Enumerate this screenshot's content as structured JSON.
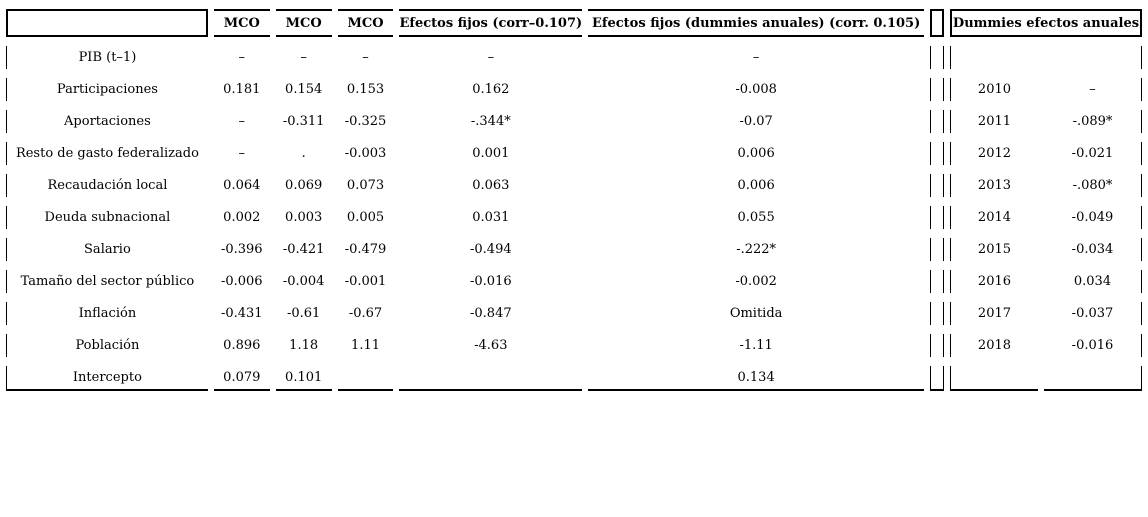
{
  "table": {
    "header": {
      "label": "",
      "mco1": "MCO",
      "mco2": "MCO",
      "mco3": "MCO",
      "ef": "Efectos fijos (corr–0.107)",
      "efd": "Efectos fijos (dummies anuales) (corr. 0.105)",
      "dummies_panel": "Dummies efectos anuales"
    },
    "rows": [
      [
        "PIB (t–1)",
        "–",
        "–",
        "–",
        "–",
        "–",
        "",
        ""
      ],
      [
        "Participaciones",
        "0.181",
        "0.154",
        "0.153",
        "0.162",
        "-0.008",
        "2010",
        "–"
      ],
      [
        "Aportaciones",
        "–",
        "-0.311",
        "-0.325",
        "-.344*",
        "-0.07",
        "2011",
        "-.089*"
      ],
      [
        "Resto de gasto federalizado",
        "–",
        ".",
        "-0.003",
        "0.001",
        "0.006",
        "2012",
        "-0.021"
      ],
      [
        "Recaudación local",
        "0.064",
        "0.069",
        "0.073",
        "0.063",
        "0.006",
        "2013",
        "-.080*"
      ],
      [
        "Deuda subnacional",
        "0.002",
        "0.003",
        "0.005",
        "0.031",
        "0.055",
        "2014",
        "-0.049"
      ],
      [
        "Salario",
        "-0.396",
        "-0.421",
        "-0.479",
        "-0.494",
        "-.222*",
        "2015",
        "-0.034"
      ],
      [
        "Tamaño del sector público",
        "-0.006",
        "-0.004",
        "-0.001",
        "-0.016",
        "-0.002",
        "2016",
        "0.034"
      ],
      [
        "Inflación",
        "-0.431",
        "-0.61",
        "-0.67",
        "-0.847",
        "Omitida",
        "2017",
        "-0.037"
      ],
      [
        "Población",
        "0.896",
        "1.18",
        "1.11",
        "-4.63",
        "-1.11",
        "2018",
        "-0.016"
      ],
      [
        "Intercepto",
        "0.079",
        "0.101",
        "",
        "",
        "0.134",
        "",
        ""
      ]
    ]
  }
}
